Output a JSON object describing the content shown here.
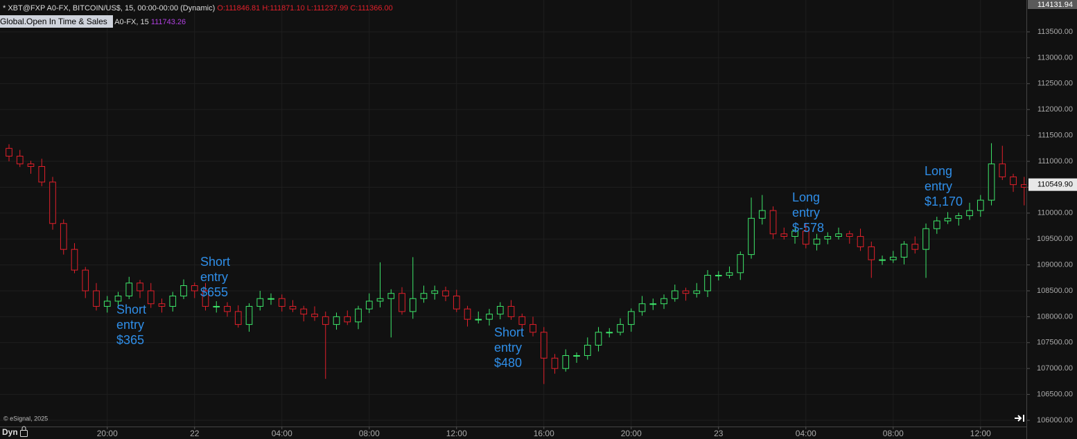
{
  "header": {
    "title": "* XBT@FXP A0-FX, BITCOIN/US$, 15, 00:00-00:00 (Dynamic)",
    "ohlc": "O:111846.81 H:111871.10 L:111237.99 C:111366.00",
    "study_label": "Global.Open In Time & Sales",
    "study_params": "A0-FX, 15",
    "study_value": "111743.26",
    "mode": "Dyn"
  },
  "chart_data": {
    "type": "candlestick",
    "up_color": "#3ee86b",
    "down_color": "#e3202b",
    "open": [
      111250,
      111100,
      110950,
      110900,
      110600,
      109800,
      109300,
      108900,
      108500,
      108200,
      108300,
      108400,
      108650,
      108500,
      108250,
      108200,
      108400,
      108600,
      108500,
      108200,
      108200,
      108100,
      107850,
      108200,
      108350,
      108350,
      108200,
      108150,
      108050,
      108000,
      107850,
      108000,
      107900,
      108150,
      108300,
      108350,
      108450,
      108100,
      108350,
      108450,
      108500,
      108400,
      108150,
      107950,
      107950,
      108050,
      108200,
      108000,
      107850,
      107700,
      107200,
      107000,
      107250,
      107250,
      107450,
      107700,
      107700,
      107850,
      108100,
      108250,
      108250,
      108350,
      108500,
      108450,
      108500,
      108800,
      108800,
      108850,
      109200,
      109900,
      110050,
      109600,
      109550,
      109650,
      109400,
      109500,
      109550,
      109600,
      109550,
      109350,
      109100,
      109100,
      109150,
      109400,
      109300,
      109700,
      109850,
      109900,
      109950,
      110050,
      110250,
      110950,
      110700,
      110550
    ],
    "high": [
      111330,
      111220,
      111010,
      111050,
      110700,
      109880,
      109420,
      108960,
      108650,
      108400,
      108480,
      108770,
      108710,
      108650,
      108350,
      108480,
      108720,
      108660,
      108650,
      108300,
      108280,
      108220,
      108260,
      108500,
      108450,
      108430,
      108320,
      108210,
      108200,
      108100,
      108080,
      108120,
      108210,
      108450,
      109050,
      108530,
      108570,
      109150,
      108600,
      108600,
      108580,
      108520,
      108210,
      108100,
      108150,
      108280,
      108320,
      108060,
      108000,
      107800,
      107280,
      107370,
      107310,
      107600,
      107800,
      107780,
      107970,
      108160,
      108400,
      108350,
      108430,
      108620,
      108560,
      108650,
      108900,
      108880,
      108970,
      109260,
      110300,
      110350,
      110130,
      109720,
      109710,
      109800,
      109600,
      109630,
      109720,
      109660,
      109700,
      109450,
      109180,
      109270,
      109460,
      109550,
      109800,
      109930,
      110020,
      110010,
      110200,
      110350,
      111350,
      111300,
      110760,
      110700
    ],
    "low": [
      111000,
      110890,
      110760,
      110520,
      109680,
      109200,
      108840,
      108360,
      108120,
      108080,
      108200,
      108340,
      108360,
      108170,
      108080,
      108100,
      108340,
      108360,
      108120,
      108080,
      108000,
      107790,
      107710,
      108120,
      108230,
      108100,
      108090,
      107910,
      107920,
      106800,
      107750,
      107840,
      107760,
      108070,
      108180,
      107600,
      108040,
      107960,
      108270,
      108330,
      108300,
      108090,
      107810,
      107870,
      107830,
      107950,
      107940,
      107710,
      107620,
      106700,
      106900,
      106940,
      107110,
      107170,
      107330,
      107600,
      107640,
      107710,
      108020,
      108130,
      108150,
      108290,
      108310,
      108370,
      108380,
      108700,
      108740,
      108710,
      109120,
      109780,
      109500,
      109490,
      109410,
      109320,
      109280,
      109400,
      109490,
      109410,
      109270,
      108750,
      109000,
      109040,
      109010,
      109220,
      108750,
      109600,
      109790,
      109760,
      109870,
      109930,
      110150,
      110640,
      110410,
      110150
    ],
    "close": [
      111100,
      110950,
      110900,
      110600,
      109800,
      109300,
      108900,
      108500,
      108200,
      108300,
      108400,
      108650,
      108500,
      108250,
      108200,
      108400,
      108600,
      108500,
      108200,
      108200,
      108100,
      107850,
      108200,
      108350,
      108350,
      108200,
      108150,
      108050,
      108000,
      107850,
      108000,
      107900,
      108150,
      108300,
      108350,
      108450,
      108100,
      108350,
      108450,
      108500,
      108400,
      108150,
      107950,
      107950,
      108050,
      108200,
      108000,
      107850,
      107700,
      107200,
      107000,
      107250,
      107250,
      107450,
      107700,
      107700,
      107850,
      108100,
      108250,
      108250,
      108350,
      108500,
      108450,
      108500,
      108800,
      108800,
      108850,
      109200,
      109900,
      110050,
      109600,
      109550,
      109650,
      109400,
      109500,
      109550,
      109600,
      109550,
      109350,
      109100,
      109100,
      109150,
      109400,
      109300,
      109700,
      109850,
      109900,
      109950,
      110050,
      110250,
      110950,
      110700,
      110550,
      110500
    ],
    "xlim": [
      -0.825,
      93.14
    ],
    "xticks": [
      {
        "value": 9,
        "label": "20:00"
      },
      {
        "value": 17,
        "label": "22"
      },
      {
        "value": 25,
        "label": "04:00"
      },
      {
        "value": 33,
        "label": "08:00"
      },
      {
        "value": 41,
        "label": "12:00"
      },
      {
        "value": 49,
        "label": "16:00"
      },
      {
        "value": 57,
        "label": "20:00"
      },
      {
        "value": 65,
        "label": "23"
      },
      {
        "value": 73,
        "label": "04:00"
      },
      {
        "value": 81,
        "label": "08:00"
      },
      {
        "value": 89,
        "label": "12:00"
      }
    ],
    "ylim": [
      105826,
      114115
    ],
    "yticks": [
      {
        "value": 106000,
        "label": "106000.00"
      },
      {
        "value": 106500,
        "label": "106500.00"
      },
      {
        "value": 107000,
        "label": "107000.00"
      },
      {
        "value": 107500,
        "label": "107500.00"
      },
      {
        "value": 108000,
        "label": "108000.00"
      },
      {
        "value": 108500,
        "label": "108500.00"
      },
      {
        "value": 109000,
        "label": "109000.00"
      },
      {
        "value": 109500,
        "label": "109500.00"
      },
      {
        "value": 110000,
        "label": "110000.00"
      },
      {
        "value": 110500,
        "label": "110500.00"
      },
      {
        "value": 111000,
        "label": "111000.00"
      },
      {
        "value": 111500,
        "label": "111500.00"
      },
      {
        "value": 112000,
        "label": "112000.00"
      },
      {
        "value": 112500,
        "label": "112500.00"
      },
      {
        "value": 113000,
        "label": "113000.00"
      },
      {
        "value": 113500,
        "label": "113500.00"
      }
    ],
    "grid": true,
    "top_price": {
      "value": 114131.94,
      "label": "114131.94"
    },
    "last_price": {
      "value": 110549.9,
      "label": "110549.90"
    },
    "annotations": [
      [
        "Short",
        "entry",
        "$365"
      ],
      [
        "Short",
        "entry",
        "$655"
      ],
      [
        "Short",
        "entry",
        "$480"
      ],
      [
        "Long",
        "entry",
        "$-578"
      ],
      [
        "Long",
        "entry",
        "$1,170"
      ]
    ],
    "watermark": "© eSignal, 2025"
  }
}
